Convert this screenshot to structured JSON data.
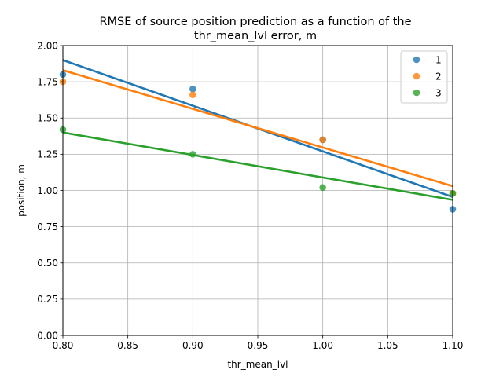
{
  "chart_data": {
    "type": "scatter",
    "title": [
      "RMSE of source position prediction as a function of the",
      "thr_mean_lvl error, m"
    ],
    "xlabel": "thr_mean_lvl",
    "ylabel": "position, m",
    "xlim": [
      0.8,
      1.1
    ],
    "ylim": [
      0.0,
      2.0
    ],
    "xticks": [
      0.8,
      0.85,
      0.9,
      0.95,
      1.0,
      1.05,
      1.1
    ],
    "xtick_labels": [
      "0.80",
      "0.85",
      "0.90",
      "0.95",
      "1.00",
      "1.05",
      "1.10"
    ],
    "yticks": [
      0.0,
      0.25,
      0.5,
      0.75,
      1.0,
      1.25,
      1.5,
      1.75,
      2.0
    ],
    "ytick_labels": [
      "0.00",
      "0.25",
      "0.50",
      "0.75",
      "1.00",
      "1.25",
      "1.50",
      "1.75",
      "2.00"
    ],
    "grid": true,
    "legend_position": "top-right",
    "series": [
      {
        "name": "1",
        "color": "#1f77b4",
        "x": [
          0.8,
          0.9,
          1.0,
          1.1
        ],
        "y": [
          1.8,
          1.7,
          1.35,
          0.87
        ],
        "trend": [
          [
            0.8,
            1.9
          ],
          [
            1.1,
            0.955
          ]
        ]
      },
      {
        "name": "2",
        "color": "#ff7f0e",
        "x": [
          0.8,
          0.9,
          1.0,
          1.1
        ],
        "y": [
          1.75,
          1.66,
          1.35,
          0.98
        ],
        "trend": [
          [
            0.8,
            1.83
          ],
          [
            1.1,
            1.03
          ]
        ]
      },
      {
        "name": "3",
        "color": "#2ca02c",
        "x": [
          0.8,
          0.9,
          1.0,
          1.1
        ],
        "y": [
          1.42,
          1.25,
          1.02,
          0.98
        ],
        "trend": [
          [
            0.8,
            1.4
          ],
          [
            1.1,
            0.935
          ]
        ]
      }
    ]
  }
}
